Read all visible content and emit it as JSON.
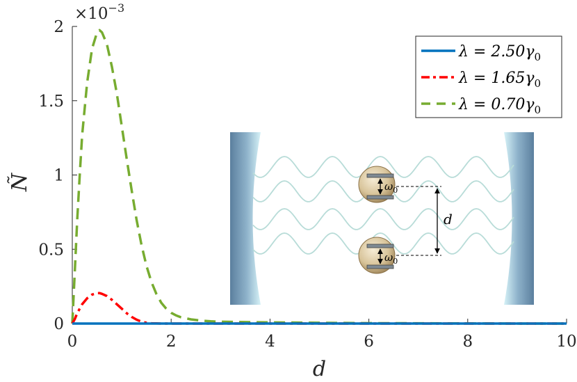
{
  "chart_data": {
    "type": "line",
    "xlabel": "d",
    "ylabel": "Ñ",
    "y_exponent_label": "×10",
    "y_exponent_power": "−3",
    "xlim": [
      0,
      10
    ],
    "ylim": [
      0,
      2
    ],
    "x_ticks": [
      "0",
      "2",
      "4",
      "6",
      "8",
      "10"
    ],
    "y_ticks": [
      "0",
      "0.5",
      "1",
      "1.5",
      "2"
    ],
    "grid": false,
    "legend_position": "top-right",
    "series": [
      {
        "name": "λ = 2.50γ0",
        "label_main": "λ = 2.50γ",
        "label_sub": "0",
        "color": "#0072BD",
        "style": "solid",
        "x": [
          0,
          10
        ],
        "y": [
          0,
          0
        ]
      },
      {
        "name": "λ = 1.65γ0",
        "label_main": "λ = 1.65γ",
        "label_sub": "0",
        "color": "#FF0000",
        "style": "dashdot",
        "x": [
          0,
          0.05,
          0.1,
          0.2,
          0.3,
          0.4,
          0.5,
          0.55,
          0.6,
          0.7,
          0.8,
          0.9,
          1.0,
          1.1,
          1.2,
          1.3,
          1.4,
          1.5,
          1.6,
          1.7,
          1.8,
          2.0,
          3,
          4,
          5,
          6,
          7,
          8,
          9,
          10
        ],
        "y": [
          0,
          0.03,
          0.07,
          0.13,
          0.17,
          0.195,
          0.205,
          0.205,
          0.2,
          0.185,
          0.16,
          0.13,
          0.1,
          0.07,
          0.045,
          0.026,
          0.013,
          0.005,
          0.002,
          0.001,
          0,
          0,
          0,
          0,
          0,
          0,
          0,
          0,
          0,
          0
        ]
      },
      {
        "name": "λ = 0.70γ0",
        "label_main": "λ = 0.70γ",
        "label_sub": "0",
        "color": "#77AC30",
        "style": "dashed",
        "x": [
          0,
          0.05,
          0.1,
          0.15,
          0.2,
          0.3,
          0.4,
          0.5,
          0.55,
          0.6,
          0.7,
          0.8,
          0.9,
          1.0,
          1.1,
          1.2,
          1.3,
          1.4,
          1.5,
          1.6,
          1.7,
          1.8,
          1.9,
          2.0,
          2.1,
          2.2,
          2.4,
          2.6,
          2.8,
          3.0,
          3.5,
          4.0,
          5,
          6,
          7,
          8,
          9,
          10
        ],
        "y": [
          0,
          0.35,
          0.7,
          1.0,
          1.27,
          1.62,
          1.85,
          1.96,
          1.975,
          1.96,
          1.88,
          1.73,
          1.55,
          1.33,
          1.11,
          0.9,
          0.7,
          0.53,
          0.39,
          0.28,
          0.2,
          0.14,
          0.1,
          0.072,
          0.055,
          0.042,
          0.028,
          0.02,
          0.015,
          0.012,
          0.01,
          0.008,
          0.005,
          0.003,
          0.002,
          0.001,
          0,
          0
        ]
      }
    ]
  },
  "inset": {
    "omega_main": "ω",
    "omega_sub": "0",
    "distance_label": "d",
    "mirror_color": "#5B7F9E"
  }
}
